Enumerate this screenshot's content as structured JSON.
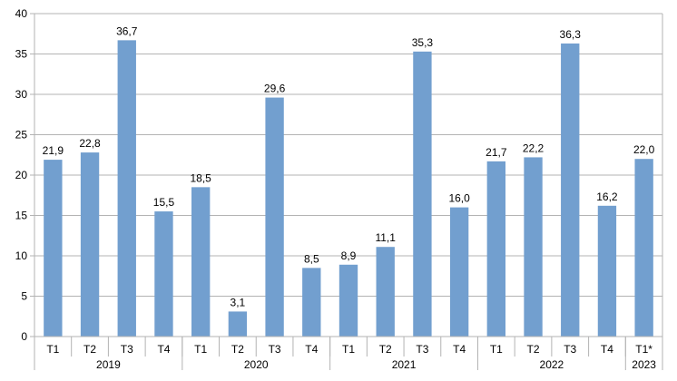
{
  "chart_data": {
    "type": "bar",
    "grid": true,
    "legend": "none",
    "ylim": [
      0,
      40
    ],
    "yticks": [
      0,
      5,
      10,
      15,
      20,
      25,
      30,
      35,
      40
    ],
    "categories": [
      "T1",
      "T2",
      "T3",
      "T4",
      "T1",
      "T2",
      "T3",
      "T4",
      "T1",
      "T2",
      "T3",
      "T4",
      "T1",
      "T2",
      "T3",
      "T4",
      "T1*"
    ],
    "values": [
      21.9,
      22.8,
      36.7,
      15.5,
      18.5,
      3.1,
      29.6,
      8.5,
      8.9,
      11.1,
      35.3,
      16.0,
      21.7,
      22.2,
      36.3,
      16.2,
      22.0
    ],
    "data_labels": [
      "21,9",
      "22,8",
      "36,7",
      "15,5",
      "18,5",
      "3,1",
      "29,6",
      "8,5",
      "8,9",
      "11,1",
      "35,3",
      "16,0",
      "21,7",
      "22,2",
      "36,3",
      "16,2",
      "22,0"
    ],
    "groups": [
      {
        "label": "2019",
        "count": 4
      },
      {
        "label": "2020",
        "count": 4
      },
      {
        "label": "2021",
        "count": 4
      },
      {
        "label": "2022",
        "count": 4
      },
      {
        "label": "2023",
        "count": 1
      }
    ],
    "colors": {
      "bar": "#729fcf",
      "grid": "#b3b3b3"
    }
  }
}
